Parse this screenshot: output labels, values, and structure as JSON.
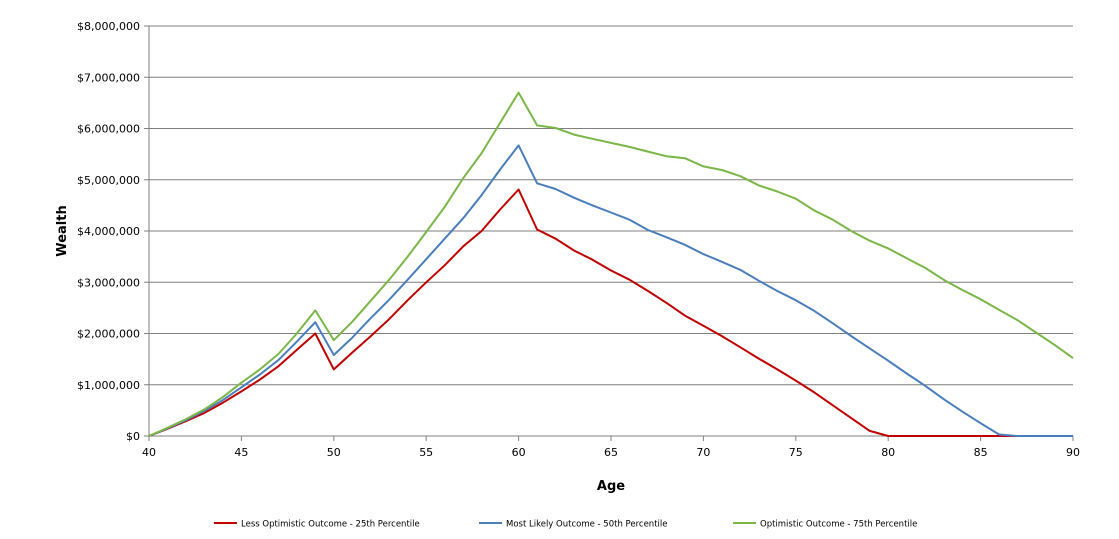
{
  "chart_data": {
    "type": "line",
    "xlabel": "Age",
    "ylabel": "Wealth",
    "xlim": [
      40,
      90
    ],
    "ylim": [
      0,
      8000000
    ],
    "x_ticks": [
      40,
      45,
      50,
      55,
      60,
      65,
      70,
      75,
      80,
      85,
      90
    ],
    "y_ticks": [
      0,
      1000000,
      2000000,
      3000000,
      4000000,
      5000000,
      6000000,
      7000000,
      8000000
    ],
    "x_tick_labels": [
      "40",
      "45",
      "50",
      "55",
      "60",
      "65",
      "70",
      "75",
      "80",
      "85",
      "90"
    ],
    "y_tick_labels": [
      "$0",
      "$1,000,000",
      "$2,000,000",
      "$3,000,000",
      "$4,000,000",
      "$5,000,000",
      "$6,000,000",
      "$7,000,000",
      "$8,000,000"
    ],
    "grid": "horizontal",
    "legend_position": "bottom",
    "x": [
      40,
      41,
      42,
      43,
      44,
      45,
      46,
      47,
      48,
      49,
      50,
      51,
      52,
      53,
      54,
      55,
      56,
      57,
      58,
      59,
      60,
      61,
      62,
      63,
      64,
      65,
      66,
      67,
      68,
      69,
      70,
      71,
      72,
      73,
      74,
      75,
      76,
      77,
      78,
      79,
      80,
      81,
      82,
      83,
      84,
      85,
      86,
      87,
      88,
      89,
      90
    ],
    "series": [
      {
        "name": "Less Optimistic Outcome - 25th Percentile",
        "color": "#c00000",
        "values": [
          0,
          140000,
          290000,
          450000,
          650000,
          870000,
          1100000,
          1360000,
          1680000,
          2000000,
          1300000,
          1630000,
          1950000,
          2280000,
          2650000,
          3000000,
          3330000,
          3700000,
          4000000,
          4420000,
          4810000,
          4030000,
          3850000,
          3620000,
          3440000,
          3230000,
          3050000,
          2830000,
          2600000,
          2350000,
          2150000,
          1950000,
          1730000,
          1510000,
          1300000,
          1080000,
          850000,
          600000,
          350000,
          100000,
          0,
          0,
          0,
          0,
          0,
          0,
          0,
          0,
          0,
          0,
          0
        ]
      },
      {
        "name": "Most Likely Outcome - 50th Percentile",
        "color": "#4a7ebb",
        "values": [
          0,
          150000,
          310000,
          490000,
          700000,
          950000,
          1200000,
          1480000,
          1840000,
          2220000,
          1580000,
          1920000,
          2300000,
          2660000,
          3050000,
          3450000,
          3850000,
          4250000,
          4700000,
          5200000,
          5670000,
          4930000,
          4820000,
          4650000,
          4500000,
          4360000,
          4220000,
          4020000,
          3880000,
          3730000,
          3550000,
          3400000,
          3240000,
          3030000,
          2830000,
          2650000,
          2440000,
          2200000,
          1950000,
          1710000,
          1470000,
          1220000,
          980000,
          720000,
          480000,
          250000,
          30000,
          0,
          0,
          0,
          0
        ]
      },
      {
        "name": "Optimistic Outcome - 75th Percentile",
        "color": "#7ab648",
        "values": [
          0,
          160000,
          330000,
          520000,
          760000,
          1040000,
          1300000,
          1600000,
          2000000,
          2450000,
          1870000,
          2230000,
          2640000,
          3050000,
          3500000,
          3980000,
          4470000,
          5030000,
          5520000,
          6110000,
          6700000,
          6060000,
          6010000,
          5880000,
          5800000,
          5720000,
          5640000,
          5550000,
          5460000,
          5420000,
          5260000,
          5190000,
          5070000,
          4890000,
          4770000,
          4630000,
          4400000,
          4220000,
          4000000,
          3810000,
          3660000,
          3470000,
          3280000,
          3050000,
          2850000,
          2670000,
          2460000,
          2260000,
          2020000,
          1780000,
          1520000
        ]
      }
    ]
  }
}
